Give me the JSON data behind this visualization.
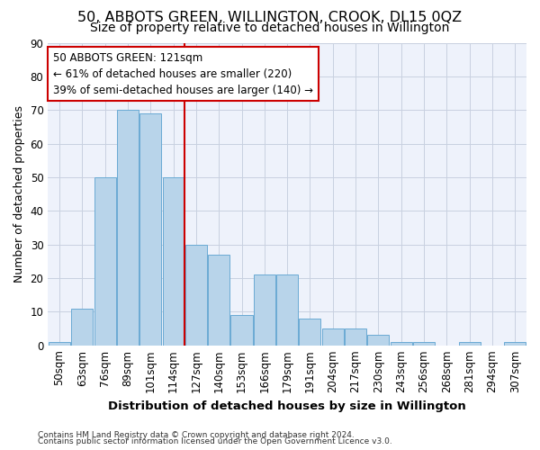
{
  "title": "50, ABBOTS GREEN, WILLINGTON, CROOK, DL15 0QZ",
  "subtitle": "Size of property relative to detached houses in Willington",
  "xlabel": "Distribution of detached houses by size in Willington",
  "ylabel": "Number of detached properties",
  "categories": [
    "50sqm",
    "63sqm",
    "76sqm",
    "89sqm",
    "101sqm",
    "114sqm",
    "127sqm",
    "140sqm",
    "153sqm",
    "166sqm",
    "179sqm",
    "191sqm",
    "204sqm",
    "217sqm",
    "230sqm",
    "243sqm",
    "256sqm",
    "268sqm",
    "281sqm",
    "294sqm",
    "307sqm"
  ],
  "values": [
    1,
    11,
    50,
    70,
    69,
    50,
    30,
    27,
    9,
    21,
    21,
    8,
    5,
    5,
    3,
    1,
    1,
    0,
    1,
    0,
    1
  ],
  "bar_color": "#b8d4ea",
  "bar_edgecolor": "#6aaad4",
  "vline_x": 5.5,
  "vline_color": "#cc0000",
  "annotation_text": "50 ABBOTS GREEN: 121sqm\n← 61% of detached houses are smaller (220)\n39% of semi-detached houses are larger (140) →",
  "annotation_box_color": "#ffffff",
  "annotation_box_edgecolor": "#cc0000",
  "ylim": [
    0,
    90
  ],
  "yticks": [
    0,
    10,
    20,
    30,
    40,
    50,
    60,
    70,
    80,
    90
  ],
  "footnote1": "Contains HM Land Registry data © Crown copyright and database right 2024.",
  "footnote2": "Contains public sector information licensed under the Open Government Licence v3.0.",
  "bg_color": "#eef2fb",
  "grid_color": "#c8d0e0",
  "title_fontsize": 11.5,
  "subtitle_fontsize": 10,
  "xlabel_fontsize": 9.5,
  "ylabel_fontsize": 9,
  "tick_fontsize": 8.5,
  "footnote_fontsize": 6.5
}
